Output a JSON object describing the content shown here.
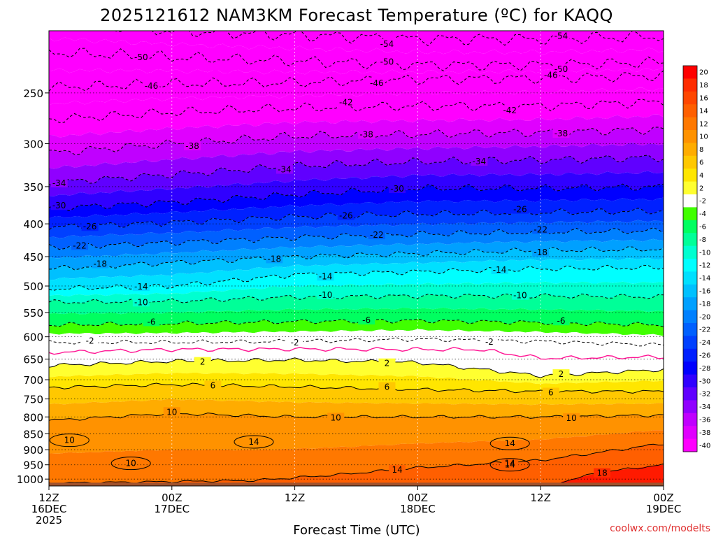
{
  "chart_data": {
    "type": "heatmap",
    "title": "2025121612 NAM3KM Forecast Temperature (ºC) for KAQQ",
    "xlabel": "Forecast Time (UTC)",
    "ylabel": "",
    "x_ticks": [
      {
        "hour": 0,
        "lines": [
          "12Z",
          "16DEC",
          "2025"
        ]
      },
      {
        "hour": 12,
        "lines": [
          "00Z",
          "17DEC"
        ]
      },
      {
        "hour": 24,
        "lines": [
          "12Z"
        ]
      },
      {
        "hour": 36,
        "lines": [
          "00Z",
          "18DEC"
        ]
      },
      {
        "hour": 48,
        "lines": [
          "12Z"
        ]
      },
      {
        "hour": 60,
        "lines": [
          "00Z",
          "19DEC"
        ]
      }
    ],
    "xlim": [
      0,
      60
    ],
    "y_ticks": [
      250,
      300,
      350,
      400,
      450,
      500,
      550,
      600,
      650,
      700,
      750,
      800,
      850,
      900,
      950,
      1000
    ],
    "ylim_hPa": [
      200,
      1025
    ],
    "surface_pressure_hPa": 1013,
    "colorbar": {
      "levels": [
        20,
        18,
        16,
        14,
        12,
        10,
        8,
        6,
        4,
        2,
        -2,
        -4,
        -6,
        -8,
        -10,
        -12,
        -14,
        -16,
        -18,
        -20,
        -22,
        -24,
        -26,
        -28,
        -30,
        -32,
        -34,
        -36,
        -38,
        -40
      ],
      "colors": [
        "#ff0000",
        "#ff2c00",
        "#ff4600",
        "#ff5f00",
        "#ff7800",
        "#ff9200",
        "#ffac00",
        "#ffc800",
        "#ffe600",
        "#ffff30",
        "#ffffff",
        "#40ff00",
        "#00ff60",
        "#00ff98",
        "#00ffd0",
        "#00ffff",
        "#00e0ff",
        "#00c0ff",
        "#00a0ff",
        "#0080ff",
        "#0060ff",
        "#0040ff",
        "#0020ff",
        "#0000ff",
        "#3000ff",
        "#6000ff",
        "#9000ff",
        "#c000ff",
        "#e000ff",
        "#ff00ff"
      ]
    },
    "isotherms": [
      {
        "temp": -54,
        "profile": [
          [
            0,
            195
          ],
          [
            12,
            200
          ],
          [
            24,
            203
          ],
          [
            36,
            206
          ],
          [
            48,
            206
          ],
          [
            60,
            204
          ]
        ],
        "labels": [
          [
            17,
            "-54"
          ],
          [
            33,
            "-54"
          ],
          [
            50,
            "-54"
          ]
        ]
      },
      {
        "temp": -50,
        "profile": [
          [
            0,
            216
          ],
          [
            12,
            220
          ],
          [
            24,
            223
          ],
          [
            36,
            226
          ],
          [
            48,
            226
          ],
          [
            60,
            224
          ]
        ],
        "labels": [
          [
            9,
            "-50"
          ],
          [
            33,
            "-50"
          ],
          [
            50,
            "-50"
          ]
        ]
      },
      {
        "temp": -46,
        "profile": [
          [
            0,
            245
          ],
          [
            12,
            242
          ],
          [
            24,
            241
          ],
          [
            36,
            238
          ],
          [
            48,
            237
          ],
          [
            60,
            235
          ]
        ],
        "labels": [
          [
            10,
            "-46"
          ],
          [
            32,
            "-46"
          ],
          [
            49,
            "-46"
          ]
        ]
      },
      {
        "temp": -42,
        "profile": [
          [
            0,
            275
          ],
          [
            12,
            268
          ],
          [
            24,
            264
          ],
          [
            36,
            262
          ],
          [
            48,
            262
          ],
          [
            60,
            258
          ]
        ],
        "labels": [
          [
            29,
            "-42"
          ],
          [
            45,
            "-42"
          ]
        ]
      },
      {
        "temp": -38,
        "profile": [
          [
            0,
            310
          ],
          [
            12,
            300
          ],
          [
            24,
            292
          ],
          [
            36,
            290
          ],
          [
            48,
            288
          ],
          [
            60,
            285
          ]
        ],
        "labels": [
          [
            14,
            "-38"
          ],
          [
            31,
            "-38"
          ],
          [
            50,
            "-38"
          ]
        ]
      },
      {
        "temp": -34,
        "profile": [
          [
            0,
            345
          ],
          [
            12,
            335
          ],
          [
            24,
            325
          ],
          [
            36,
            320
          ],
          [
            48,
            318
          ],
          [
            60,
            315
          ]
        ],
        "labels": [
          [
            1,
            "-34"
          ],
          [
            23,
            "-34"
          ],
          [
            42,
            "-34"
          ]
        ]
      },
      {
        "temp": -30,
        "profile": [
          [
            0,
            378
          ],
          [
            12,
            370
          ],
          [
            24,
            360
          ],
          [
            36,
            352
          ],
          [
            48,
            352
          ],
          [
            60,
            350
          ]
        ],
        "labels": [
          [
            1,
            "-30"
          ],
          [
            34,
            "-30"
          ]
        ]
      },
      {
        "temp": -26,
        "profile": [
          [
            0,
            405
          ],
          [
            12,
            398
          ],
          [
            24,
            390
          ],
          [
            36,
            386
          ],
          [
            48,
            384
          ],
          [
            60,
            382
          ]
        ],
        "labels": [
          [
            4,
            "-26"
          ],
          [
            29,
            "-26"
          ],
          [
            46,
            "-26"
          ]
        ]
      },
      {
        "temp": -22,
        "profile": [
          [
            0,
            435
          ],
          [
            12,
            428
          ],
          [
            24,
            420
          ],
          [
            36,
            415
          ],
          [
            48,
            412
          ],
          [
            60,
            410
          ]
        ],
        "labels": [
          [
            3,
            "-22"
          ],
          [
            32,
            "-22"
          ],
          [
            48,
            "-22"
          ]
        ]
      },
      {
        "temp": -18,
        "profile": [
          [
            0,
            470
          ],
          [
            12,
            460
          ],
          [
            24,
            450
          ],
          [
            36,
            445
          ],
          [
            48,
            440
          ],
          [
            60,
            438
          ]
        ],
        "labels": [
          [
            5,
            "-18"
          ],
          [
            22,
            "-18"
          ],
          [
            48,
            "-18"
          ]
        ]
      },
      {
        "temp": -14,
        "profile": [
          [
            0,
            505
          ],
          [
            12,
            500
          ],
          [
            24,
            480
          ],
          [
            36,
            475
          ],
          [
            48,
            470
          ],
          [
            60,
            468
          ]
        ],
        "labels": [
          [
            9,
            "-14"
          ],
          [
            27,
            "-14"
          ],
          [
            44,
            "-14"
          ]
        ]
      },
      {
        "temp": -10,
        "profile": [
          [
            0,
            530
          ],
          [
            12,
            528
          ],
          [
            24,
            520
          ],
          [
            36,
            518
          ],
          [
            48,
            518
          ],
          [
            60,
            520
          ]
        ],
        "labels": [
          [
            9,
            "-10"
          ],
          [
            27,
            "-10"
          ],
          [
            46,
            "-10"
          ]
        ]
      },
      {
        "temp": -6,
        "profile": [
          [
            0,
            575
          ],
          [
            12,
            572
          ],
          [
            24,
            568
          ],
          [
            36,
            566
          ],
          [
            48,
            570
          ],
          [
            60,
            575
          ]
        ],
        "labels": [
          [
            10,
            "-6"
          ],
          [
            31,
            "-6"
          ],
          [
            50,
            "-6"
          ]
        ]
      },
      {
        "temp": -2,
        "profile": [
          [
            0,
            612
          ],
          [
            12,
            612
          ],
          [
            24,
            610
          ],
          [
            36,
            605
          ],
          [
            48,
            610
          ],
          [
            60,
            618
          ]
        ],
        "labels": [
          [
            4,
            "-2"
          ],
          [
            24,
            "-2"
          ],
          [
            43,
            "-2"
          ]
        ]
      },
      {
        "temp": 2,
        "profile": [
          [
            0,
            665
          ],
          [
            12,
            655
          ],
          [
            24,
            652
          ],
          [
            36,
            658
          ],
          [
            48,
            690
          ],
          [
            60,
            675
          ]
        ],
        "labels": [
          [
            15,
            "2"
          ],
          [
            33,
            "2"
          ],
          [
            50,
            "2"
          ]
        ]
      },
      {
        "temp": 6,
        "profile": [
          [
            0,
            720
          ],
          [
            12,
            712
          ],
          [
            24,
            718
          ],
          [
            36,
            725
          ],
          [
            48,
            730
          ],
          [
            60,
            730
          ]
        ],
        "labels": [
          [
            16,
            "6"
          ],
          [
            33,
            "6"
          ],
          [
            49,
            "6"
          ]
        ]
      },
      {
        "temp": 10,
        "profile": [
          [
            0,
            810
          ],
          [
            12,
            790
          ],
          [
            24,
            800
          ],
          [
            36,
            800
          ],
          [
            48,
            800
          ],
          [
            60,
            795
          ]
        ],
        "labels": [
          [
            12,
            "10"
          ],
          [
            28,
            "10"
          ],
          [
            51,
            "10"
          ]
        ]
      },
      {
        "temp": 14,
        "profile": [
          [
            0,
            1015
          ],
          [
            20,
            1005
          ],
          [
            28,
            985
          ],
          [
            36,
            960
          ],
          [
            48,
            935
          ],
          [
            60,
            880
          ]
        ],
        "labels": [
          [
            34,
            "14"
          ],
          [
            45,
            "14"
          ]
        ]
      },
      {
        "temp": 18,
        "profile": [
          [
            50,
            1010
          ],
          [
            54,
            975
          ],
          [
            60,
            950
          ]
        ],
        "labels": [
          [
            54,
            "18"
          ]
        ]
      }
    ],
    "freezing_line": {
      "temp": 0,
      "color": "#ff1493",
      "profile": [
        [
          0,
          635
        ],
        [
          12,
          628
        ],
        [
          24,
          627
        ],
        [
          36,
          628
        ],
        [
          42,
          628
        ],
        [
          48,
          648
        ],
        [
          60,
          645
        ]
      ]
    },
    "closed_contours": [
      {
        "temp": 10,
        "center": [
          2,
          870
        ],
        "label": "10"
      },
      {
        "temp": 10,
        "center": [
          8,
          945
        ],
        "label": "10"
      },
      {
        "temp": 14,
        "center": [
          20,
          875
        ],
        "label": "14"
      },
      {
        "temp": 14,
        "center": [
          45,
          880
        ],
        "label": "14"
      },
      {
        "temp": 14,
        "center": [
          45,
          950
        ],
        "label": "14"
      }
    ]
  },
  "credit": "coolwx.com/modelts"
}
